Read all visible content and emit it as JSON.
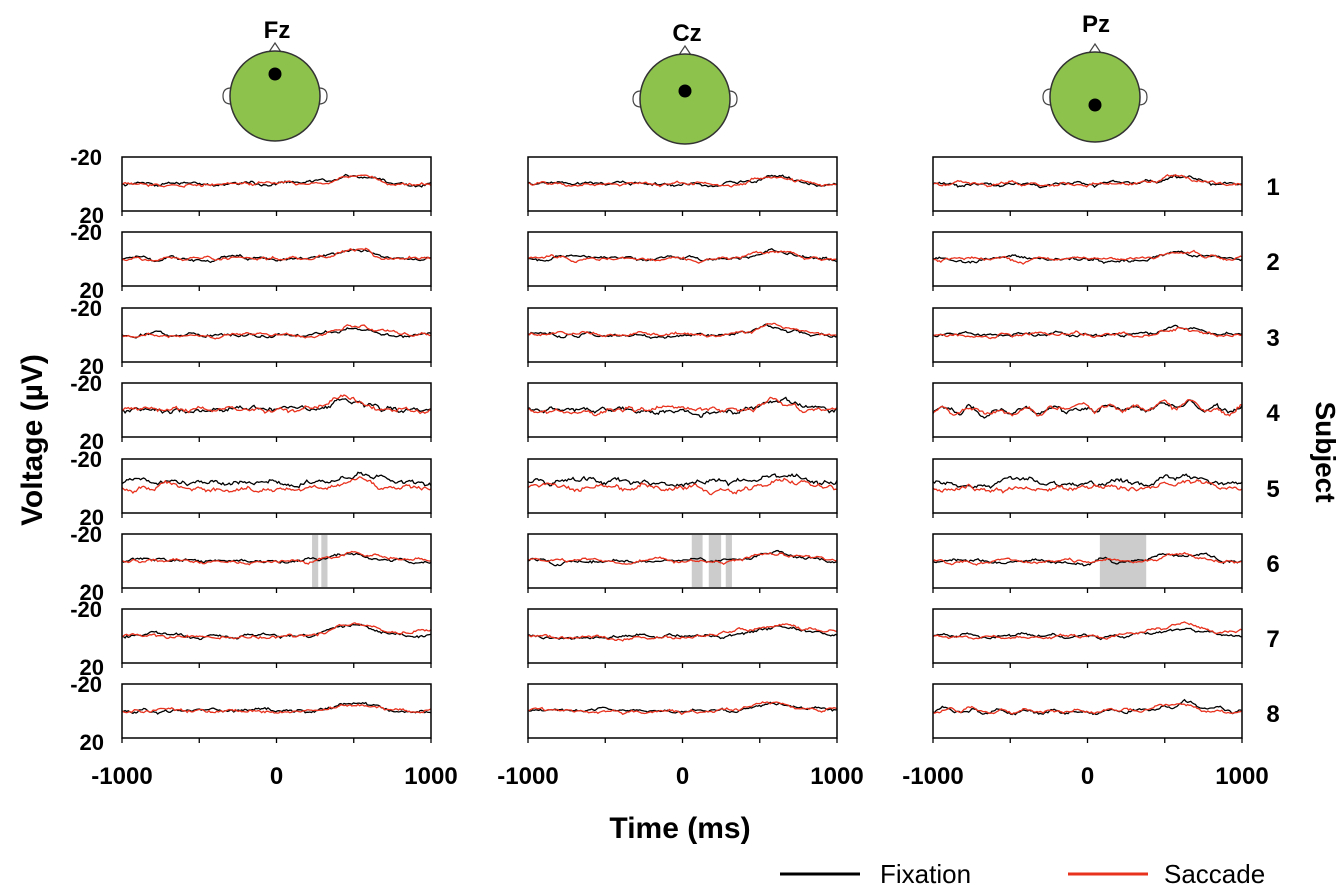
{
  "chart_data": {
    "type": "line",
    "electrodes": [
      "Fz",
      "Cz",
      "Pz"
    ],
    "subjects": [
      "1",
      "2",
      "3",
      "4",
      "5",
      "6",
      "7",
      "8"
    ],
    "xlabel": "Time (ms)",
    "ylabel": "Voltage (µV)",
    "subject_label": "Subject",
    "xlim": [
      -1000,
      1000
    ],
    "x_ticks": [
      -1000,
      -500,
      0,
      500,
      1000
    ],
    "x_tick_labels": [
      "-1000",
      "0",
      "1000"
    ],
    "ylim": [
      20,
      -20
    ],
    "y_inverted": true,
    "y_tick_labels": [
      "-20",
      "20"
    ],
    "grid": false,
    "legend_position": "bottom-right",
    "series": [
      {
        "name": "Fixation",
        "color": "#000000"
      },
      {
        "name": "Saccade",
        "color": "#e8321e"
      }
    ],
    "significance_color": "#cccccc",
    "significance_windows_ms": {
      "Fz-6": [
        [
          230,
          270
        ],
        [
          290,
          330
        ]
      ],
      "Cz-6": [
        [
          60,
          130
        ],
        [
          170,
          250
        ],
        [
          280,
          320
        ]
      ],
      "Pz-6": [
        [
          80,
          380
        ]
      ]
    },
    "waveform_shape_per_electrode": {
      "Fz": {
        "peak_latency_ms": 500,
        "peak_uV": -6
      },
      "Cz": {
        "peak_latency_ms": 600,
        "peak_uV": -6
      },
      "Pz": {
        "peak_latency_ms": 600,
        "peak_uV": -5
      }
    }
  },
  "legend": {
    "fixation": "Fixation",
    "saccade": "Saccade"
  }
}
